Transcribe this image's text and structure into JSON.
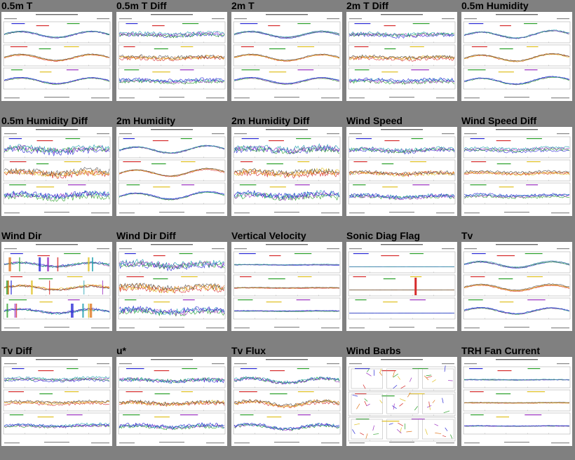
{
  "thumbnails": [
    {
      "title": "0.5m T",
      "kind": "temp",
      "seed": 11
    },
    {
      "title": "0.5m T Diff",
      "kind": "diff",
      "seed": 12
    },
    {
      "title": "2m T",
      "kind": "temp",
      "seed": 13
    },
    {
      "title": "2m T Diff",
      "kind": "diff",
      "seed": 14
    },
    {
      "title": "0.5m Humidity",
      "kind": "humid",
      "seed": 15
    },
    {
      "title": "0.5m Humidity Diff",
      "kind": "diffbig",
      "seed": 21
    },
    {
      "title": "2m Humidity",
      "kind": "humid",
      "seed": 22
    },
    {
      "title": "2m Humidity Diff",
      "kind": "diffbig",
      "seed": 23
    },
    {
      "title": "Wind Speed",
      "kind": "noisy",
      "seed": 24
    },
    {
      "title": "Wind Speed Diff",
      "kind": "diffsmall",
      "seed": 25
    },
    {
      "title": "Wind Dir",
      "kind": "winddir",
      "seed": 31
    },
    {
      "title": "Wind Dir Diff",
      "kind": "diffbig",
      "seed": 32
    },
    {
      "title": "Vertical Velocity",
      "kind": "flat",
      "seed": 33
    },
    {
      "title": "Sonic Diag Flag",
      "kind": "flag",
      "seed": 34
    },
    {
      "title": "Tv",
      "kind": "temp",
      "seed": 35
    },
    {
      "title": "Tv Diff",
      "kind": "diffsmall",
      "seed": 41
    },
    {
      "title": "u*",
      "kind": "noisy",
      "seed": 42
    },
    {
      "title": "Tv Flux",
      "kind": "flux",
      "seed": 43
    },
    {
      "title": "Wind Barbs",
      "kind": "barbs",
      "seed": 44
    },
    {
      "title": "TRH Fan Current",
      "kind": "flatlines",
      "seed": 45
    }
  ],
  "palette": [
    "#2b2bd6",
    "#d62b2b",
    "#2ba02b",
    "#e0c020",
    "#9b30c0",
    "#e07820",
    "#20a0b0",
    "#555555"
  ],
  "colors": {
    "background": "#808080",
    "thumb_bg": "#ffffff",
    "title": "#000000"
  }
}
